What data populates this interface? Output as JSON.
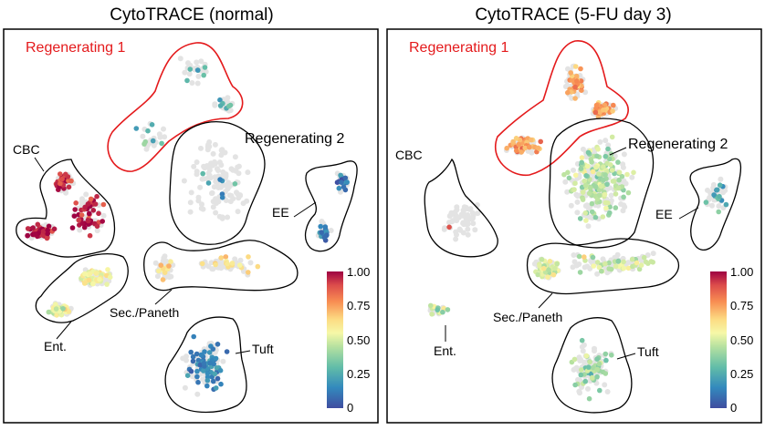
{
  "chart_data": [
    {
      "type": "scatter",
      "title": "CytoTRACE (normal)",
      "colorbar": {
        "ticks": [
          "0",
          "0.25",
          "0.50",
          "0.75",
          "1.00"
        ],
        "range": [
          0,
          1
        ]
      },
      "clusters": [
        {
          "name": "Regenerating 1",
          "score_mean": 0.3,
          "highlight": true
        },
        {
          "name": "Regenerating 2",
          "score_mean": 0.2
        },
        {
          "name": "CBC",
          "score_mean": 0.95
        },
        {
          "name": "EE",
          "score_mean": 0.12
        },
        {
          "name": "Sec./Paneth",
          "score_mean": 0.65
        },
        {
          "name": "Ent.",
          "score_mean": 0.55
        },
        {
          "name": "Tuft",
          "score_mean": 0.15
        }
      ]
    },
    {
      "type": "scatter",
      "title": "CytoTRACE (5-FU day 3)",
      "colorbar": {
        "ticks": [
          "0",
          "0.25",
          "0.50",
          "0.75",
          "1.00"
        ],
        "range": [
          0,
          1
        ]
      },
      "clusters": [
        {
          "name": "Regenerating 1",
          "score_mean": 0.75,
          "highlight": true
        },
        {
          "name": "Regenerating 2",
          "score_mean": 0.45
        },
        {
          "name": "CBC",
          "score_mean": 0.9
        },
        {
          "name": "EE",
          "score_mean": 0.25
        },
        {
          "name": "Sec./Paneth",
          "score_mean": 0.5
        },
        {
          "name": "Ent.",
          "score_mean": 0.45
        },
        {
          "name": "Tuft",
          "score_mean": 0.4
        }
      ]
    }
  ],
  "colors": {
    "highlight_outline": "#e41a1c",
    "outline": "#000000",
    "background_cells": "#e3e3e3"
  }
}
